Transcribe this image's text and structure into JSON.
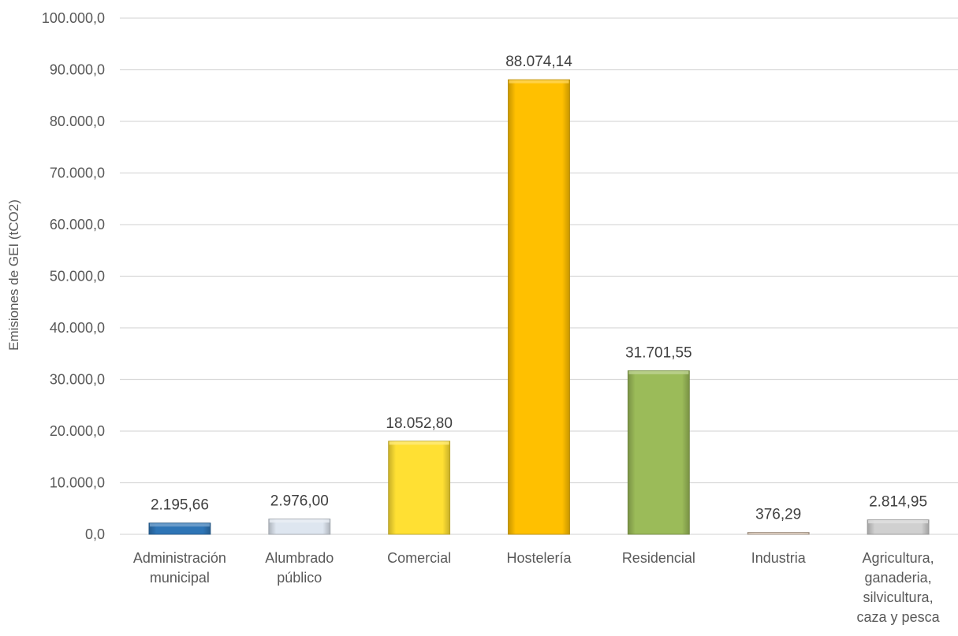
{
  "chart_data": {
    "type": "bar",
    "title": "",
    "xlabel": "",
    "ylabel": "Emisiones de GEI (tCO2)",
    "ylim": [
      0,
      100000
    ],
    "yticks": [
      0,
      10000,
      20000,
      30000,
      40000,
      50000,
      60000,
      70000,
      80000,
      90000,
      100000
    ],
    "ytick_labels": [
      "0,0",
      "10.000,0",
      "20.000,0",
      "30.000,0",
      "40.000,0",
      "50.000,0",
      "60.000,0",
      "70.000,0",
      "80.000,0",
      "90.000,0",
      "100.000,0"
    ],
    "grid": true,
    "legend": "none",
    "categories": [
      [
        "Administración",
        "municipal"
      ],
      [
        "Alumbrado",
        "público"
      ],
      [
        "Comercial"
      ],
      [
        "Hostelería"
      ],
      [
        "Residencial"
      ],
      [
        "Industria"
      ],
      [
        "Agricultura,",
        "ganaderia,",
        "silvicultura,",
        "caza y pesca"
      ]
    ],
    "values": [
      2195.66,
      2976.0,
      18052.8,
      88074.14,
      31701.55,
      376.29,
      2814.95
    ],
    "value_labels": [
      "2.195,66",
      "2.976,00",
      "18.052,80",
      "88.074,14",
      "31.701,55",
      "376,29",
      "2.814,95"
    ],
    "colors": [
      "#2e75b6",
      "#dee6f0",
      "#ffe033",
      "#ffc000",
      "#9bbb59",
      "#d9c4b0",
      "#d0d0d0"
    ]
  }
}
